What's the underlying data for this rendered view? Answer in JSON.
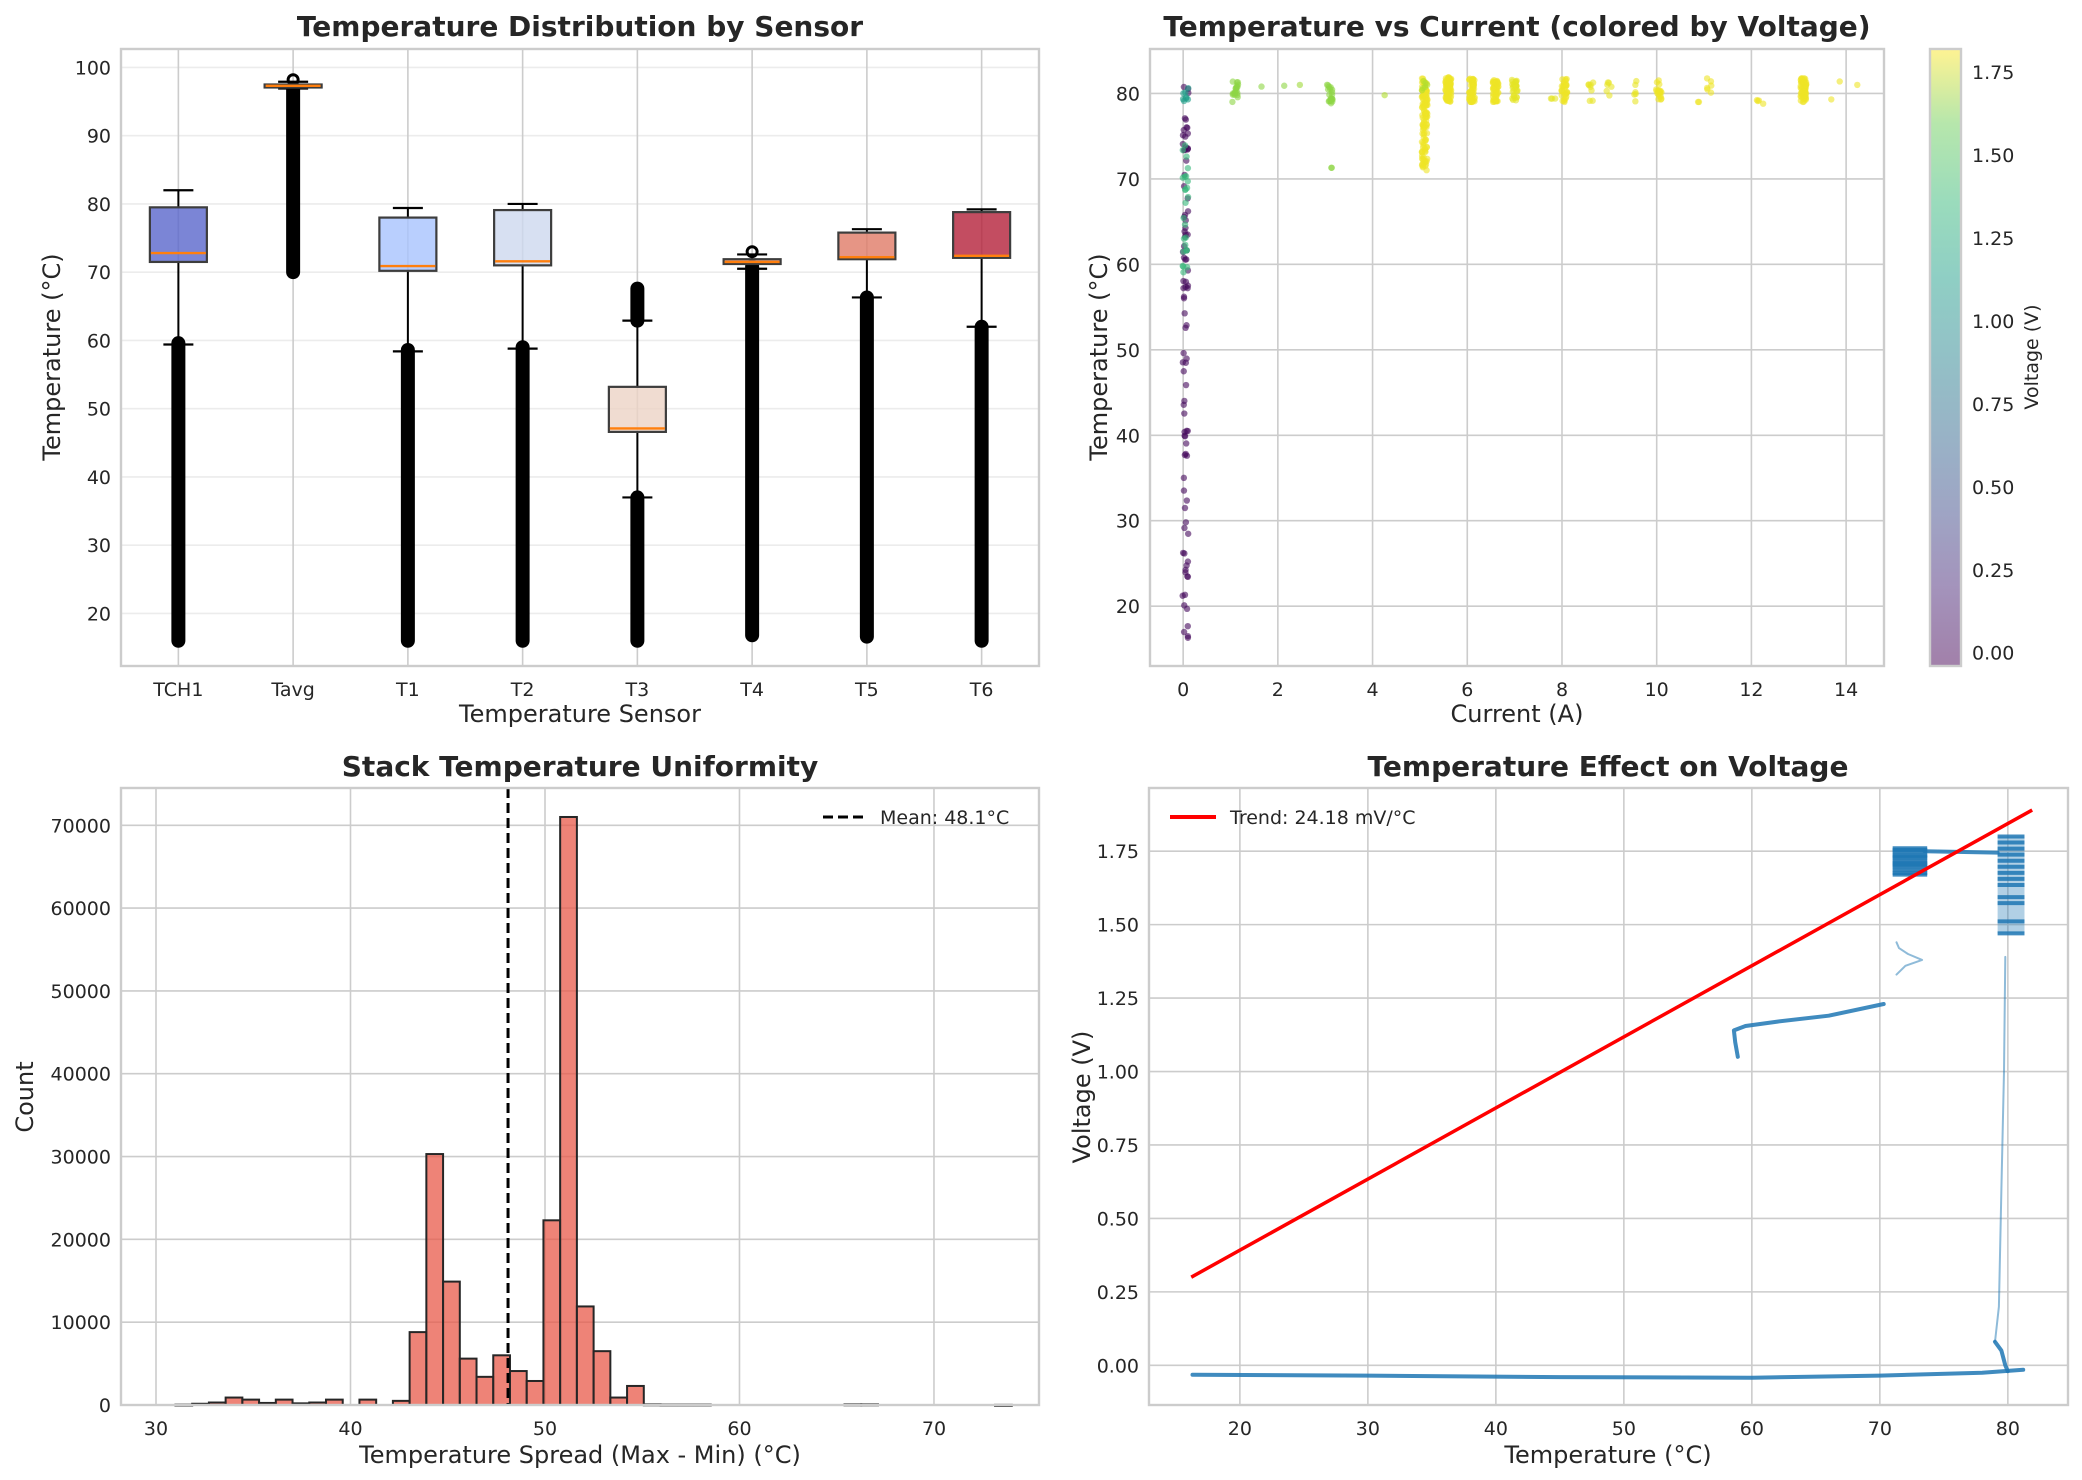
{
  "figure": {
    "panels": [
      "Temperature Distribution by Sensor",
      "Temperature vs Current (colored by Voltage)",
      "Stack Temperature Uniformity",
      "Temperature Effect on Voltage"
    ]
  },
  "chart_data": [
    {
      "type": "box",
      "title": "Temperature Distribution by Sensor",
      "xlabel": "Temperature Sensor",
      "ylabel": "Temperature (°C)",
      "ylim": [
        12.3,
        102.7
      ],
      "yticks": [
        20,
        30,
        40,
        50,
        60,
        70,
        80,
        90,
        100
      ],
      "grid": true,
      "categories": [
        "TCH1",
        "Tavg",
        "T1",
        "T2",
        "T3",
        "T4",
        "T5",
        "T6"
      ],
      "boxes": [
        {
          "name": "TCH1",
          "q1": 71.5,
          "median": 72.8,
          "q3": 79.5,
          "whisker_low": 59.4,
          "whisker_high": 82.0,
          "flier_ranges": [
            [
              16.0,
              59.6
            ]
          ],
          "color": "#5a67cc"
        },
        {
          "name": "Tavg",
          "q1": 97.1,
          "median": 97.3,
          "q3": 97.5,
          "whisker_low": 96.9,
          "whisker_high": 97.9,
          "flier_ranges": [
            [
              70.0,
              96.8
            ],
            [
              98.2,
              98.2
            ]
          ],
          "color": "#6e7fd8"
        },
        {
          "name": "T1",
          "q1": 70.2,
          "median": 70.9,
          "q3": 78.0,
          "whisker_low": 58.4,
          "whisker_high": 79.4,
          "flier_ranges": [
            [
              16.0,
              58.6
            ]
          ],
          "color": "#a8c3fe"
        },
        {
          "name": "T2",
          "q1": 71.0,
          "median": 71.6,
          "q3": 79.1,
          "whisker_low": 58.8,
          "whisker_high": 80.0,
          "flier_ranges": [
            [
              16.0,
              59.0
            ]
          ],
          "color": "#cdd8ef"
        },
        {
          "name": "T3",
          "q1": 46.6,
          "median": 47.1,
          "q3": 53.2,
          "whisker_low": 37.0,
          "whisker_high": 62.9,
          "flier_ranges": [
            [
              16.0,
              37.0
            ],
            [
              62.9,
              67.6
            ]
          ],
          "color": "#ecd3c5"
        },
        {
          "name": "T4",
          "q1": 71.2,
          "median": 71.5,
          "q3": 71.9,
          "whisker_low": 70.5,
          "whisker_high": 72.6,
          "flier_ranges": [
            [
              16.8,
              70.8
            ],
            [
              72.8,
              73.0
            ]
          ],
          "color": "#f0a183"
        },
        {
          "name": "T5",
          "q1": 71.9,
          "median": 72.2,
          "q3": 75.8,
          "whisker_low": 66.3,
          "whisker_high": 76.3,
          "flier_ranges": [
            [
              16.6,
              66.3
            ]
          ],
          "color": "#e07b67"
        },
        {
          "name": "T6",
          "q1": 72.1,
          "median": 72.4,
          "q3": 78.8,
          "whisker_low": 62.0,
          "whisker_high": 79.2,
          "flier_ranges": [
            [
              16.0,
              62.0
            ]
          ],
          "color": "#b4213a"
        }
      ],
      "median_color": "#ff7f0e",
      "flier_color": "#000000"
    },
    {
      "type": "scatter",
      "title": "Temperature vs Current (colored by Voltage)",
      "xlabel": "Current (A)",
      "ylabel": "Temperature (°C)",
      "xlim": [
        -0.7,
        14.8
      ],
      "ylim": [
        13.0,
        85.2
      ],
      "xticks": [
        0,
        2,
        4,
        6,
        8,
        10,
        12,
        14
      ],
      "yticks": [
        20,
        30,
        40,
        50,
        60,
        70,
        80
      ],
      "grid": true,
      "colorbar": {
        "label": "Voltage (V)",
        "range": [
          -0.04,
          1.82
        ],
        "ticks": [
          "0.00",
          "0.25",
          "0.50",
          "0.75",
          "1.00",
          "1.25",
          "1.50",
          "1.75"
        ],
        "colormap": "viridis"
      },
      "clusters": [
        {
          "x": 0.05,
          "y_range": [
            16.3,
            81.0
          ],
          "v": 0.0,
          "n": 90
        },
        {
          "x": 0.05,
          "y_range": [
            58.5,
            74.0
          ],
          "v": 1.2,
          "n": 25
        },
        {
          "x": 0.05,
          "y_range": [
            79.0,
            81.0
          ],
          "v": 1.0,
          "n": 8
        },
        {
          "x": 1.1,
          "y_range": [
            79.0,
            81.4
          ],
          "v": 1.5,
          "n": 20
        },
        {
          "x": 1.6,
          "y_range": [
            80.8,
            80.8
          ],
          "v": 1.5,
          "n": 1
        },
        {
          "x": 2.1,
          "y_range": [
            80.9,
            80.9
          ],
          "v": 1.5,
          "n": 1
        },
        {
          "x": 2.5,
          "y_range": [
            81.0,
            81.0
          ],
          "v": 1.55,
          "n": 1
        },
        {
          "x": 3.1,
          "y_range": [
            78.8,
            81.2
          ],
          "v": 1.5,
          "n": 20
        },
        {
          "x": 3.1,
          "y_range": [
            71.3,
            71.3
          ],
          "v": 1.5,
          "n": 2
        },
        {
          "x": 4.3,
          "y_range": [
            79.8,
            79.8
          ],
          "v": 1.6,
          "n": 1
        },
        {
          "x": 5.1,
          "y_range": [
            71.0,
            81.8
          ],
          "v": 1.78,
          "n": 120
        },
        {
          "x": 5.1,
          "y_range": [
            79.5,
            81.5
          ],
          "v": 1.6,
          "n": 6
        },
        {
          "x": 5.6,
          "y_range": [
            79.0,
            81.9
          ],
          "v": 1.78,
          "n": 80
        },
        {
          "x": 6.1,
          "y_range": [
            79.0,
            81.8
          ],
          "v": 1.78,
          "n": 60
        },
        {
          "x": 6.6,
          "y_range": [
            79.0,
            81.6
          ],
          "v": 1.78,
          "n": 50
        },
        {
          "x": 7.0,
          "y_range": [
            79.2,
            81.7
          ],
          "v": 1.75,
          "n": 30
        },
        {
          "x": 7.8,
          "y_range": [
            79.4,
            79.4
          ],
          "v": 1.75,
          "n": 3
        },
        {
          "x": 8.05,
          "y_range": [
            79.0,
            81.8
          ],
          "v": 1.78,
          "n": 30
        },
        {
          "x": 8.6,
          "y_range": [
            79.0,
            81.4
          ],
          "v": 1.76,
          "n": 8
        },
        {
          "x": 9.0,
          "y_range": [
            79.3,
            81.3
          ],
          "v": 1.76,
          "n": 6
        },
        {
          "x": 9.55,
          "y_range": [
            79.0,
            81.5
          ],
          "v": 1.76,
          "n": 6
        },
        {
          "x": 10.05,
          "y_range": [
            79.0,
            81.6
          ],
          "v": 1.78,
          "n": 20
        },
        {
          "x": 10.9,
          "y_range": [
            79.0,
            79.0
          ],
          "v": 1.78,
          "n": 2
        },
        {
          "x": 11.1,
          "y_range": [
            79.5,
            81.8
          ],
          "v": 1.78,
          "n": 6
        },
        {
          "x": 12.1,
          "y_range": [
            79.0,
            79.3
          ],
          "v": 1.78,
          "n": 3
        },
        {
          "x": 12.3,
          "y_range": [
            78.8,
            78.8
          ],
          "v": 1.78,
          "n": 1
        },
        {
          "x": 13.1,
          "y_range": [
            79.0,
            81.8
          ],
          "v": 1.78,
          "n": 60
        },
        {
          "x": 13.7,
          "y_range": [
            79.3,
            79.3
          ],
          "v": 1.78,
          "n": 1
        },
        {
          "x": 13.9,
          "y_range": [
            81.4,
            81.4
          ],
          "v": 1.78,
          "n": 1
        },
        {
          "x": 14.2,
          "y_range": [
            81.0,
            81.0
          ],
          "v": 1.78,
          "n": 1
        }
      ]
    },
    {
      "type": "bar",
      "title": "Stack Temperature Uniformity",
      "xlabel": "Temperature Spread (Max - Min) (°C)",
      "ylabel": "Count",
      "xlim": [
        28.2,
        75.4
      ],
      "ylim": [
        0,
        74500
      ],
      "xticks": [
        30,
        40,
        50,
        60,
        70
      ],
      "yticks": [
        0,
        10000,
        20000,
        30000,
        40000,
        50000,
        60000,
        70000
      ],
      "grid": true,
      "bin_start": 31.0,
      "bin_width": 0.86,
      "counts": [
        50,
        150,
        300,
        900,
        650,
        250,
        650,
        200,
        300,
        650,
        0,
        650,
        0,
        500,
        8800,
        30300,
        14900,
        5600,
        3400,
        6000,
        4100,
        2900,
        22300,
        71000,
        11900,
        6500,
        900,
        2300,
        80,
        60,
        60,
        60,
        0,
        0,
        0,
        0,
        0,
        0,
        0,
        0,
        80,
        80,
        0,
        0,
        0,
        0,
        0,
        0,
        0,
        20
      ],
      "bar_color": "#e8594a",
      "mean_line": {
        "value": 48.1,
        "label": "Mean: 48.1°C"
      },
      "legend": "top-right"
    },
    {
      "type": "scatter",
      "title": "Temperature Effect on Voltage",
      "xlabel": "Temperature (°C)",
      "ylabel": "Voltage (V)",
      "xlim": [
        12.9,
        84.7
      ],
      "ylim": [
        -0.135,
        1.965
      ],
      "xticks": [
        20,
        30,
        40,
        50,
        60,
        70,
        80
      ],
      "yticks": [
        "0.00",
        "0.25",
        "0.50",
        "0.75",
        "1.00",
        "1.25",
        "1.50",
        "1.75"
      ],
      "grid": true,
      "trend": {
        "label": "Trend: 24.18 mV/°C",
        "x": [
          16.2,
          81.9
        ],
        "y": [
          0.3,
          1.89
        ],
        "color": "#ff0000"
      },
      "legend": "top-left",
      "segments": [
        {
          "name": "idle-baseline",
          "points": [
            [
              16.3,
              -0.032
            ],
            [
              30,
              -0.035
            ],
            [
              45,
              -0.04
            ],
            [
              60,
              -0.042
            ],
            [
              70,
              -0.035
            ],
            [
              78,
              -0.025
            ],
            [
              81.2,
              -0.015
            ]
          ]
        },
        {
          "name": "warmup-branch",
          "points": [
            [
              58.9,
              1.05
            ],
            [
              58.7,
              1.1
            ],
            [
              58.6,
              1.14
            ],
            [
              59.5,
              1.155
            ],
            [
              62,
              1.17
            ],
            [
              66,
              1.19
            ],
            [
              70.3,
              1.23
            ]
          ]
        },
        {
          "name": "t71-branch",
          "points": [
            [
              71.3,
              1.33
            ],
            [
              72,
              1.36
            ],
            [
              73.3,
              1.38
            ],
            [
              72.2,
              1.4
            ],
            [
              71.5,
              1.42
            ],
            [
              71.3,
              1.44
            ]
          ]
        },
        {
          "name": "t71-band",
          "points": [
            [
              71.0,
              1.67
            ],
            [
              73.7,
              1.67
            ],
            [
              73.7,
              1.76
            ],
            [
              71.0,
              1.76
            ]
          ]
        },
        {
          "name": "t80-band",
          "points": [
            [
              79.2,
              1.47
            ],
            [
              81.3,
              1.47
            ],
            [
              81.3,
              1.8
            ],
            [
              79.2,
              1.8
            ]
          ]
        },
        {
          "name": "t80-drop",
          "points": [
            [
              79.8,
              1.39
            ],
            [
              79.7,
              1.0
            ],
            [
              79.5,
              0.6
            ],
            [
              79.3,
              0.2
            ],
            [
              79.0,
              0.08
            ]
          ]
        },
        {
          "name": "t80-bottom-hook",
          "points": [
            [
              79.0,
              0.08
            ],
            [
              79.5,
              0.05
            ],
            [
              79.8,
              0.0
            ],
            [
              80.0,
              -0.02
            ]
          ]
        },
        {
          "name": "bridge-1.75",
          "points": [
            [
              73.5,
              1.75
            ],
            [
              79.2,
              1.745
            ]
          ]
        }
      ],
      "point_color": "#1f77b4"
    }
  ]
}
